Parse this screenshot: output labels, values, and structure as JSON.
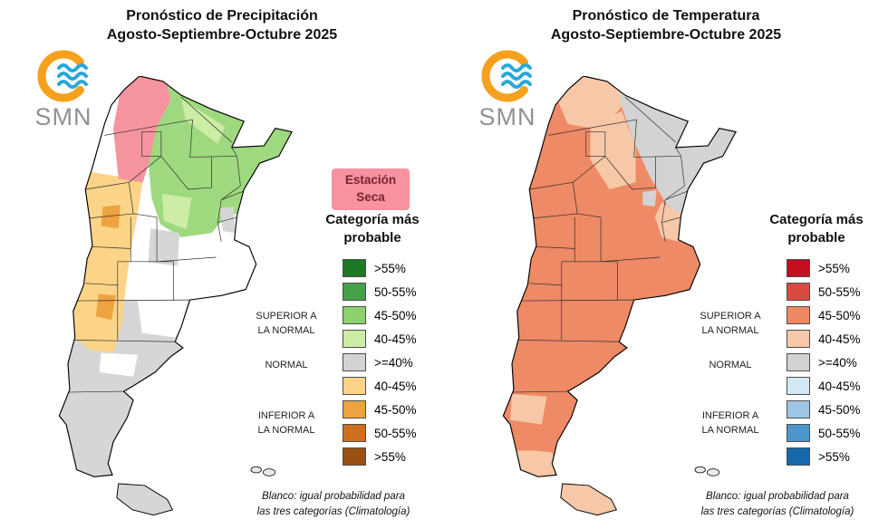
{
  "panels": [
    {
      "id": "precipitacion",
      "title": "Pronóstico de Precipitación",
      "subtitle": "Agosto-Septiembre-Octubre 2025",
      "logo": "SMN",
      "dry_season_badge": "Estación\nSeca",
      "badge_color": "#f7929e",
      "legend_title": "Categoría más\nprobable",
      "groups": [
        "SUPERIOR A\nLA NORMAL",
        "NORMAL",
        "INFERIOR A\nLA NORMAL"
      ],
      "legend": [
        {
          "label": ">55%",
          "color": "#1d7a24"
        },
        {
          "label": "50-55%",
          "color": "#44a248"
        },
        {
          "label": "45-50%",
          "color": "#8ed06e"
        },
        {
          "label": "40-45%",
          "color": "#cdeca6"
        },
        {
          "label": ">=40%",
          "color": "#d3d3d3"
        },
        {
          "label": "40-45%",
          "color": "#fbd488"
        },
        {
          "label": "45-50%",
          "color": "#eda33f"
        },
        {
          "label": "50-55%",
          "color": "#cd6f1f"
        },
        {
          "label": ">55%",
          "color": "#9a5014"
        }
      ],
      "footnote": "Blanco: igual probabilidad para\nlas tres categorías (Climatología)",
      "map": {
        "base": "#ffffff",
        "dry_pink": "#f5949e",
        "green_main": "#9ed97f",
        "green_light": "#cdeca6",
        "orange_light": "#fbd488",
        "orange_mid": "#eda33f",
        "gray": "#d6d6d6",
        "tdf_fill": "#d6d6d6"
      }
    },
    {
      "id": "temperatura",
      "title": "Pronóstico de Temperatura",
      "subtitle": "Agosto-Septiembre-Octubre 2025",
      "logo": "SMN",
      "legend_title": "Categoría más\nprobable",
      "groups": [
        "SUPERIOR A\nLA NORMAL",
        "NORMAL",
        "INFERIOR A\nLA NORMAL"
      ],
      "legend": [
        {
          "label": ">55%",
          "color": "#c00f1e"
        },
        {
          "label": "50-55%",
          "color": "#d84a41"
        },
        {
          "label": "45-50%",
          "color": "#ed8a63"
        },
        {
          "label": "40-45%",
          "color": "#f6c8a8"
        },
        {
          "label": ">=40%",
          "color": "#d3d3d3"
        },
        {
          "label": "40-45%",
          "color": "#d4e7f5"
        },
        {
          "label": "45-50%",
          "color": "#9cc6e4"
        },
        {
          "label": "50-55%",
          "color": "#4e97cd"
        },
        {
          "label": ">55%",
          "color": "#1668ab"
        }
      ],
      "footnote": "Blanco: igual probabilidad para\nlas tres categorías (Climatología)",
      "map": {
        "base": "#ee8a66",
        "salmon_light": "#f6c8a8",
        "gray": "#d3d3d3",
        "tdf_fill": "#f6c8a8"
      }
    }
  ]
}
